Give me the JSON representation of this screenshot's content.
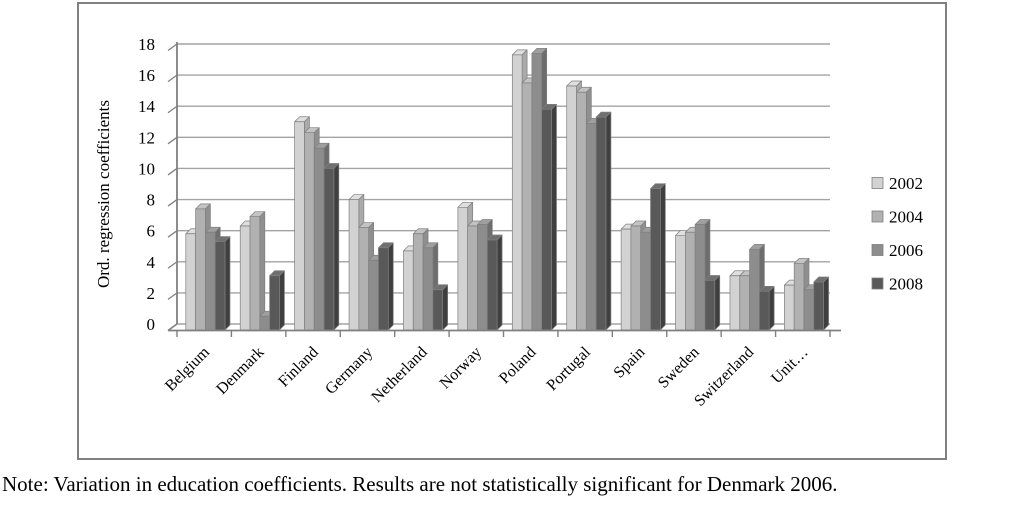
{
  "chart_data": {
    "type": "bar",
    "title": "",
    "xlabel": "",
    "ylabel": "Ord. regression coefficients",
    "ylim": [
      0,
      18
    ],
    "ytick_step": 2,
    "grid": true,
    "legend_position": "right",
    "style": "3d-clustered-column",
    "categories": [
      "Belgium",
      "Denmark",
      "Finland",
      "Germany",
      "Netherland",
      "Norway",
      "Poland",
      "Portugal",
      "Spain",
      "Sweden",
      "Switzerland",
      "Unit…"
    ],
    "series": [
      {
        "name": "2002",
        "color": "#d2d2d2",
        "top_color": "#dfdfdf",
        "side_color": "#aaaaaa",
        "values": [
          5.8,
          6.3,
          13.0,
          8.0,
          4.7,
          7.5,
          17.3,
          15.3,
          6.1,
          5.7,
          3.1,
          2.5
        ]
      },
      {
        "name": "2004",
        "color": "#b1b1b1",
        "top_color": "#c3c3c3",
        "side_color": "#8f8f8f",
        "values": [
          7.4,
          6.9,
          12.3,
          6.2,
          5.8,
          6.3,
          15.5,
          14.9,
          6.3,
          5.9,
          3.1,
          3.9
        ]
      },
      {
        "name": "2006",
        "color": "#8d8d8d",
        "top_color": "#9f9f9f",
        "side_color": "#6d6d6d",
        "values": [
          5.9,
          0.5,
          11.3,
          4.1,
          4.9,
          6.4,
          17.4,
          12.9,
          5.9,
          6.4,
          4.8,
          2.2
        ]
      },
      {
        "name": "2008",
        "color": "#595959",
        "top_color": "#6f6f6f",
        "side_color": "#3f3f3f",
        "values": [
          5.3,
          3.1,
          10.0,
          4.9,
          2.2,
          5.4,
          13.8,
          13.3,
          8.7,
          2.8,
          2.1,
          2.7
        ]
      }
    ],
    "colors": {
      "grid": "#a3a3a3",
      "axis": "#808080",
      "frame_border": "#808080",
      "bar_outline": "#7f7f7f",
      "text": "#000000",
      "background": "#ffffff"
    }
  },
  "note": "Note: Variation in education coefficients. Results are not statistically significant for Denmark 2006."
}
